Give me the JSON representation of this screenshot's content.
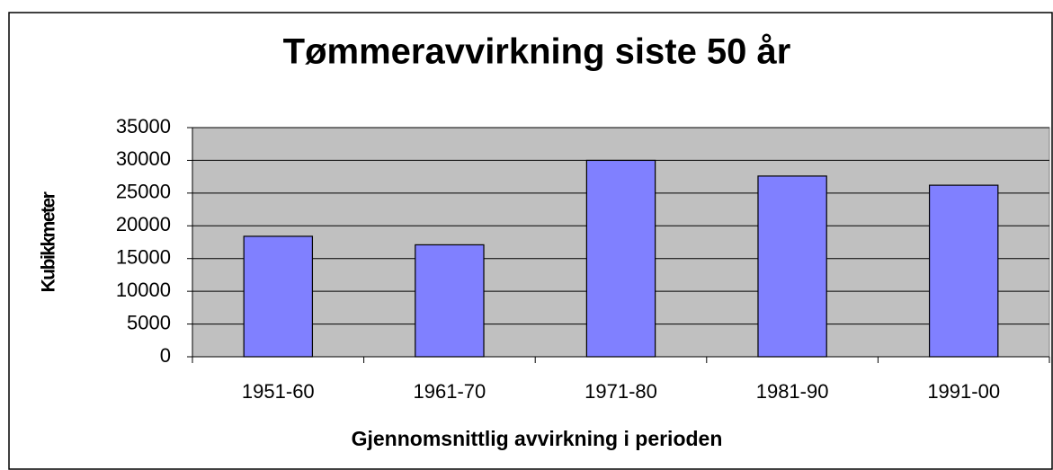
{
  "chart_data": {
    "type": "bar",
    "title": "Tømmeravvirkning siste 50 år",
    "x_label": "Gjennomsnittlig avvirkning i perioden",
    "y_label": "Kubikkmeter",
    "categories": [
      "1951-60",
      "1961-70",
      "1971-80",
      "1981-90",
      "1991-00"
    ],
    "values": [
      18400,
      17100,
      30000,
      27600,
      26200
    ],
    "color": "#8080ff",
    "ylim": [
      0,
      35000
    ],
    "yticks": [
      0,
      5000,
      10000,
      15000,
      20000,
      25000,
      30000,
      35000
    ],
    "grid": true
  }
}
